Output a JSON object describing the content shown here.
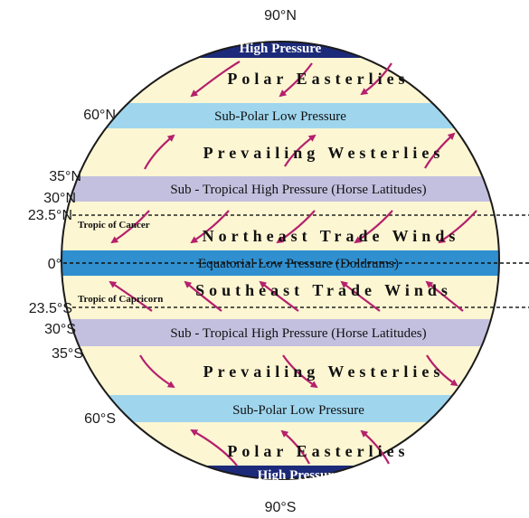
{
  "latitudes": {
    "n90": "90°N",
    "n60": "60°N",
    "n35": "35°N",
    "n30": "30°N",
    "n23": "23.5°N",
    "eq": "0°",
    "s23": "23.5°S",
    "s30": "30°S",
    "s35": "35°S",
    "s60": "60°S",
    "s90": "90°S"
  },
  "pressure_belts": {
    "north_pole": "High Pressure",
    "north_subpolar": "Sub-Polar Low Pressure",
    "north_subtropical": "Sub - Tropical High Pressure  (Horse Latitudes)",
    "equatorial": "Equatorial Low   Pressure (Doldrums)",
    "south_subtropical": "Sub - Tropical High  Pressure (Horse Latitudes)",
    "south_subpolar": "Sub-Polar Low Pressure",
    "south_pole": "High Pressure"
  },
  "wind_belts": {
    "north_polar": "Polar Easterlies",
    "north_westerlies": "Prevailing Westerlies",
    "north_trade": "Northeast Trade Winds",
    "south_trade": "Southeast Trade Winds",
    "south_westerlies": "Prevailing Westerlies",
    "south_polar": "Polar Easterlies"
  },
  "tropics": {
    "cancer": "Tropic of Cancer",
    "capricorn": "Tropic of Capricorn"
  },
  "colors": {
    "cream": "#fdf6d2",
    "light_blue": "#9fd6ee",
    "lavender": "#c3c0df",
    "equator_blue": "#2f8fcf",
    "navy": "#1c2a7a",
    "arrow": "#b5206d"
  }
}
